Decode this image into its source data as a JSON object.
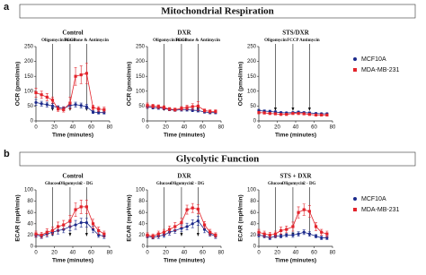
{
  "sections": [
    {
      "label": "a",
      "title": "Mitochondrial Respiration"
    },
    {
      "label": "b",
      "title": "Glycolytic Function"
    }
  ],
  "chart_data": [
    {
      "type": "line",
      "title": "Control",
      "xlabel": "Time (minutes)",
      "ylabel": "OCR (pmol/min)",
      "xlim": [
        0,
        80
      ],
      "ylim": [
        0,
        250
      ],
      "xticks": [
        0,
        20,
        40,
        60,
        80
      ],
      "yticks": [
        0,
        50,
        100,
        150,
        200,
        250
      ],
      "annotations": [
        {
          "text": "Oligomycin",
          "x": 18
        },
        {
          "text": "FCCP",
          "x": 37
        },
        {
          "text": "Rotenone & Antimycin",
          "x": 55
        }
      ],
      "x": [
        0,
        6,
        12,
        18,
        24,
        30,
        37,
        43,
        49,
        55,
        62,
        68,
        74
      ],
      "series": [
        {
          "name": "MCF10A",
          "color": "#1c2a8c",
          "values": [
            62,
            58,
            55,
            50,
            45,
            42,
            52,
            55,
            52,
            48,
            30,
            28,
            28
          ],
          "errors": [
            10,
            8,
            8,
            8,
            6,
            6,
            8,
            8,
            8,
            8,
            5,
            5,
            5
          ]
        },
        {
          "name": "MDA-MB-231",
          "color": "#e3232b",
          "values": [
            95,
            88,
            80,
            70,
            40,
            38,
            60,
            150,
            155,
            160,
            45,
            40,
            38
          ],
          "errors": [
            15,
            12,
            12,
            10,
            8,
            8,
            20,
            30,
            30,
            35,
            8,
            8,
            8
          ]
        }
      ]
    },
    {
      "type": "line",
      "title": "DXR",
      "xlabel": "Time (minutes)",
      "ylabel": "OCR (pmol/min)",
      "xlim": [
        0,
        80
      ],
      "ylim": [
        0,
        250
      ],
      "xticks": [
        0,
        20,
        40,
        60,
        80
      ],
      "yticks": [
        0,
        50,
        100,
        150,
        200,
        250
      ],
      "annotations": [
        {
          "text": "Oligomycin",
          "x": 18
        },
        {
          "text": "FCCP",
          "x": 37
        },
        {
          "text": "Rotenone & Antimycin",
          "x": 55
        }
      ],
      "x": [
        0,
        6,
        12,
        18,
        24,
        30,
        37,
        43,
        49,
        55,
        62,
        68,
        74
      ],
      "series": [
        {
          "name": "MCF10A",
          "color": "#1c2a8c",
          "values": [
            48,
            45,
            44,
            42,
            38,
            36,
            38,
            38,
            36,
            35,
            30,
            28,
            28
          ],
          "errors": [
            6,
            5,
            5,
            5,
            4,
            4,
            5,
            5,
            5,
            5,
            4,
            4,
            4
          ]
        },
        {
          "name": "MDA-MB-231",
          "color": "#e3232b",
          "values": [
            52,
            50,
            48,
            45,
            40,
            38,
            42,
            45,
            48,
            50,
            35,
            32,
            32
          ],
          "errors": [
            8,
            6,
            6,
            6,
            5,
            5,
            6,
            8,
            10,
            15,
            5,
            5,
            5
          ]
        }
      ]
    },
    {
      "type": "line",
      "title": "STS/DXR",
      "xlabel": "Time (minutes)",
      "ylabel": "OCR (pmol/min)",
      "xlim": [
        0,
        80
      ],
      "ylim": [
        0,
        250
      ],
      "xticks": [
        0,
        20,
        40,
        60,
        80
      ],
      "yticks": [
        0,
        50,
        100,
        150,
        200,
        250
      ],
      "annotations": [
        {
          "text": "Oligomycin",
          "x": 18
        },
        {
          "text": "FCCP",
          "x": 37
        },
        {
          "text": "Antimycin",
          "x": 55
        }
      ],
      "x": [
        0,
        6,
        12,
        18,
        24,
        30,
        37,
        43,
        49,
        55,
        62,
        68,
        74
      ],
      "series": [
        {
          "name": "MCF10A",
          "color": "#1c2a8c",
          "values": [
            35,
            33,
            32,
            30,
            28,
            27,
            28,
            30,
            28,
            27,
            25,
            24,
            24
          ],
          "errors": [
            4,
            4,
            4,
            4,
            3,
            3,
            3,
            3,
            3,
            3,
            3,
            3,
            3
          ]
        },
        {
          "name": "MDA-MB-231",
          "color": "#e3232b",
          "values": [
            28,
            27,
            25,
            24,
            22,
            22,
            25,
            25,
            24,
            22,
            20,
            20,
            20
          ],
          "errors": [
            4,
            4,
            3,
            3,
            3,
            3,
            3,
            3,
            3,
            3,
            3,
            3,
            3
          ]
        }
      ]
    },
    {
      "type": "line",
      "title": "Control",
      "xlabel": "Time (minutes)",
      "ylabel": "ECAR (mpH/min)",
      "xlim": [
        0,
        80
      ],
      "ylim": [
        0,
        100
      ],
      "xticks": [
        0,
        20,
        40,
        60,
        80
      ],
      "yticks": [
        0,
        20,
        40,
        60,
        80,
        100
      ],
      "annotations": [
        {
          "text": "Glucose",
          "x": 18
        },
        {
          "text": "Oligomycin",
          "x": 37
        },
        {
          "text": "2 - DG",
          "x": 55
        }
      ],
      "x": [
        0,
        6,
        12,
        18,
        24,
        30,
        37,
        43,
        49,
        55,
        62,
        68,
        74
      ],
      "series": [
        {
          "name": "MCF10A",
          "color": "#1c2a8c",
          "values": [
            20,
            18,
            22,
            25,
            28,
            30,
            35,
            38,
            42,
            42,
            30,
            20,
            18
          ],
          "errors": [
            4,
            4,
            5,
            5,
            6,
            6,
            7,
            8,
            8,
            8,
            6,
            4,
            4
          ]
        },
        {
          "name": "MDA-MB-231",
          "color": "#e3232b",
          "values": [
            22,
            20,
            25,
            28,
            35,
            38,
            45,
            65,
            70,
            70,
            40,
            28,
            22
          ],
          "errors": [
            5,
            5,
            6,
            6,
            8,
            8,
            10,
            12,
            12,
            12,
            8,
            6,
            5
          ]
        }
      ]
    },
    {
      "type": "line",
      "title": "DXR",
      "xlabel": "Time (minutes)",
      "ylabel": "ECAR (mpH/min)",
      "xlim": [
        0,
        80
      ],
      "ylim": [
        0,
        100
      ],
      "xticks": [
        0,
        20,
        40,
        60,
        80
      ],
      "yticks": [
        0,
        20,
        40,
        60,
        80,
        100
      ],
      "annotations": [
        {
          "text": "Glucose",
          "x": 18
        },
        {
          "text": "Oligomycin",
          "x": 37
        },
        {
          "text": "2 - DG",
          "x": 55
        }
      ],
      "x": [
        0,
        6,
        12,
        18,
        24,
        30,
        37,
        43,
        49,
        55,
        62,
        68,
        74
      ],
      "series": [
        {
          "name": "MCF10A",
          "color": "#1c2a8c",
          "values": [
            18,
            16,
            18,
            20,
            25,
            28,
            32,
            35,
            40,
            45,
            30,
            22,
            18
          ],
          "errors": [
            3,
            3,
            4,
            4,
            5,
            5,
            6,
            6,
            7,
            8,
            6,
            4,
            4
          ]
        },
        {
          "name": "MDA-MB-231",
          "color": "#e3232b",
          "values": [
            20,
            18,
            22,
            25,
            30,
            35,
            42,
            65,
            68,
            66,
            38,
            25,
            20
          ],
          "errors": [
            4,
            4,
            5,
            5,
            6,
            7,
            8,
            8,
            8,
            8,
            6,
            5,
            4
          ]
        }
      ]
    },
    {
      "type": "line",
      "title": "STS + DXR",
      "xlabel": "Time (minutes)",
      "ylabel": "ECAR (mpH/min)",
      "xlim": [
        0,
        80
      ],
      "ylim": [
        0,
        100
      ],
      "xticks": [
        0,
        20,
        40,
        60,
        80
      ],
      "yticks": [
        0,
        20,
        40,
        60,
        80,
        100
      ],
      "annotations": [
        {
          "text": "Glucose",
          "x": 18
        },
        {
          "text": "Oligomycin",
          "x": 37
        },
        {
          "text": "2 - DG",
          "x": 55
        }
      ],
      "x": [
        0,
        6,
        12,
        18,
        24,
        30,
        37,
        43,
        49,
        55,
        62,
        68,
        74
      ],
      "series": [
        {
          "name": "MCF10A",
          "color": "#1c2a8c",
          "values": [
            20,
            18,
            15,
            18,
            18,
            20,
            20,
            22,
            25,
            22,
            18,
            15,
            15
          ],
          "errors": [
            3,
            3,
            3,
            3,
            3,
            3,
            4,
            4,
            4,
            4,
            3,
            3,
            3
          ]
        },
        {
          "name": "MDA-MB-231",
          "color": "#e3232b",
          "values": [
            25,
            22,
            20,
            22,
            28,
            30,
            35,
            60,
            65,
            62,
            35,
            25,
            22
          ],
          "errors": [
            5,
            5,
            5,
            5,
            6,
            6,
            8,
            10,
            10,
            10,
            7,
            5,
            5
          ]
        }
      ]
    }
  ]
}
